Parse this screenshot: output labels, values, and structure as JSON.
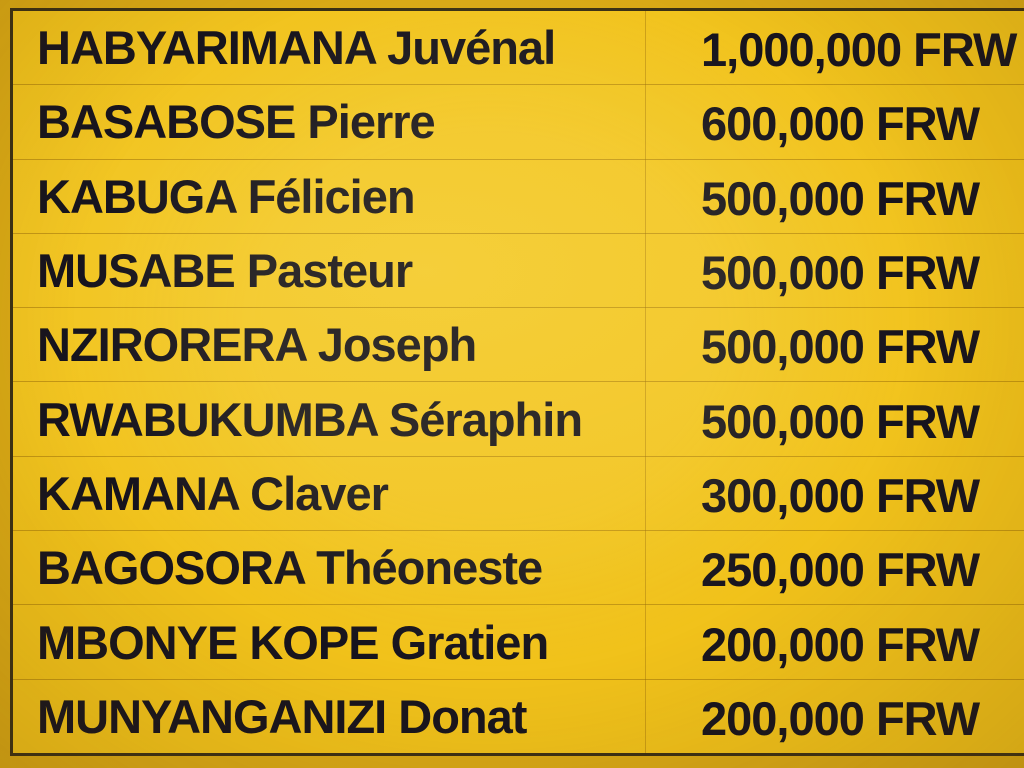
{
  "sign": {
    "type": "reward-list",
    "currency": "FRW",
    "colors": {
      "paper_yellow": "#f1c21b",
      "margin_yellow": "#d9a916",
      "ink": "#17141e",
      "border_line": "#3a3015",
      "separator_line": "#966908"
    }
  },
  "reward_table": {
    "rows": [
      {
        "name": "HABYARIMANA Juvénal",
        "amount": "1,000,000 FRW"
      },
      {
        "name": "BASABOSE Pierre",
        "amount": "600,000 FRW"
      },
      {
        "name": "KABUGA Félicien",
        "amount": "500,000 FRW"
      },
      {
        "name": "MUSABE Pasteur",
        "amount": "500,000 FRW"
      },
      {
        "name": "NZIRORERA Joseph",
        "amount": "500,000 FRW"
      },
      {
        "name": "RWABUKUMBA Séraphin",
        "amount": "500,000 FRW"
      },
      {
        "name": "KAMANA Claver",
        "amount": "300,000 FRW"
      },
      {
        "name": "BAGOSORA Théoneste",
        "amount": "250,000 FRW"
      },
      {
        "name": "MBONYE KOPE Gratien",
        "amount": "200,000 FRW"
      },
      {
        "name": "MUNYANGANIZI Donat",
        "amount": "200,000 FRW"
      }
    ]
  }
}
